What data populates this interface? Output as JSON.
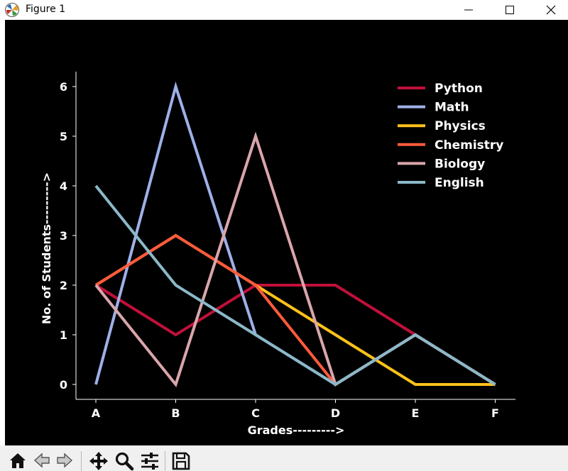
{
  "window": {
    "title": "Figure 1",
    "controls": {
      "minimize_icon": "minimize-icon",
      "maximize_icon": "maximize-icon",
      "close_icon": "close-icon"
    }
  },
  "toolbar": {
    "buttons": [
      {
        "name": "home",
        "icon": "home-icon"
      },
      {
        "name": "back",
        "icon": "back-arrow-icon"
      },
      {
        "name": "forward",
        "icon": "forward-arrow-icon"
      },
      {
        "name": "pan",
        "icon": "move-icon"
      },
      {
        "name": "zoom",
        "icon": "magnifier-icon"
      },
      {
        "name": "configure-subplots",
        "icon": "sliders-icon"
      },
      {
        "name": "save",
        "icon": "floppy-disk-icon"
      }
    ]
  },
  "chart_data": {
    "type": "line",
    "title": "",
    "xlabel": "Grades--------->",
    "ylabel": "No. of Students--------->",
    "categories": [
      "A",
      "B",
      "C",
      "D",
      "E",
      "F"
    ],
    "ylim": [
      -0.3,
      6.3
    ],
    "yticks": [
      0,
      1,
      2,
      3,
      4,
      5,
      6
    ],
    "grid": false,
    "legend_position": "top-right",
    "background": "#000000",
    "text_color": "#ffffff",
    "series": [
      {
        "name": "Python",
        "color": "#c0103a",
        "values": [
          2,
          1,
          2,
          2,
          1,
          0
        ]
      },
      {
        "name": "Math",
        "color": "#9eb0e8",
        "values": [
          0,
          6,
          1,
          0,
          1,
          0
        ]
      },
      {
        "name": "Physics",
        "color": "#ffc21a",
        "values": [
          2,
          3,
          2,
          1,
          0,
          0
        ]
      },
      {
        "name": "Chemistry",
        "color": "#ff5a3c",
        "values": [
          2,
          3,
          2,
          0,
          1,
          0
        ]
      },
      {
        "name": "Biology",
        "color": "#d9a6ab",
        "values": [
          2,
          0,
          5,
          0,
          1,
          0
        ]
      },
      {
        "name": "English",
        "color": "#8bb8c8",
        "values": [
          4,
          2,
          1,
          0,
          1,
          0
        ]
      }
    ]
  }
}
